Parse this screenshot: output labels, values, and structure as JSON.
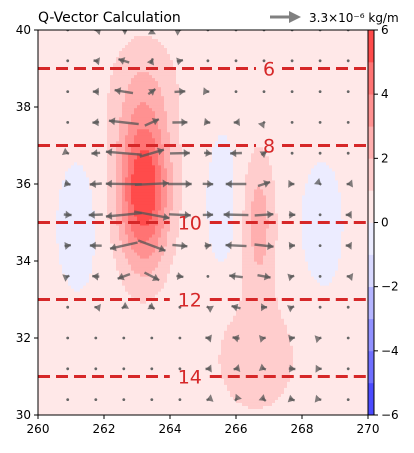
{
  "chart_data": {
    "type": "contour",
    "title": "Q-Vector Calculation",
    "reference_arrow": {
      "label": "3.3×10⁻⁶ kg/m",
      "color": "#808080"
    },
    "x_axis": {
      "min": 260,
      "max": 270,
      "ticks": [
        260,
        262,
        264,
        266,
        268,
        270
      ]
    },
    "y_axis": {
      "min": 30,
      "max": 40,
      "ticks": [
        30,
        32,
        34,
        36,
        38,
        40
      ]
    },
    "colorbar": {
      "min": -6,
      "max": 6,
      "ticks": [
        -6,
        -4,
        -2,
        0,
        2,
        4,
        6
      ],
      "levels": [
        -6,
        -5,
        -4,
        -3,
        -2,
        -1,
        0,
        1,
        2,
        3,
        4,
        5,
        6
      ],
      "colors": [
        "#4b4bff",
        "#6f6fff",
        "#9191ff",
        "#b5b5ff",
        "#d9d9ff",
        "#ececff",
        "#ffe8e8",
        "#ffcdcd",
        "#ffafaf",
        "#ff9191",
        "#ff7373",
        "#ff4b4b"
      ]
    },
    "contour_lines": [
      {
        "label": "6",
        "y": 39
      },
      {
        "label": "8",
        "y": 37
      },
      {
        "label": "10",
        "y": 35
      },
      {
        "label": "12",
        "y": 33
      },
      {
        "label": "14",
        "y": 31
      }
    ],
    "contour_line_color": "#d62728",
    "label_x": 264.6,
    "label_x_alt": 267.0,
    "label_alt_for": [
      "6",
      "8"
    ],
    "positive_centers": [
      {
        "x": 263.2,
        "y": 35.8,
        "peak": 5.8,
        "sx": 0.55,
        "sy": 1.4
      },
      {
        "x": 263.2,
        "y": 38.5,
        "peak": 1.3,
        "sx": 0.8,
        "sy": 1.1
      },
      {
        "x": 266.7,
        "y": 35.0,
        "peak": 2.2,
        "sx": 0.35,
        "sy": 1.3
      },
      {
        "x": 266.6,
        "y": 31.5,
        "peak": 1.3,
        "sx": 1.0,
        "sy": 1.2
      }
    ],
    "negative_centers": [
      {
        "x": 261.2,
        "y": 34.9,
        "peak": -0.8,
        "sx": 0.45,
        "sy": 1.2
      },
      {
        "x": 265.6,
        "y": 35.5,
        "peak": -0.8,
        "sx": 0.35,
        "sy": 1.3
      },
      {
        "x": 268.6,
        "y": 34.9,
        "peak": -0.8,
        "sx": 0.45,
        "sy": 1.2
      }
    ],
    "background_value": 0.3,
    "arrow_grid": {
      "x_start": 260.9,
      "x_step": 0.85,
      "y_start": 30.4,
      "y_step": 0.8,
      "nx": 12,
      "ny": 13
    }
  }
}
